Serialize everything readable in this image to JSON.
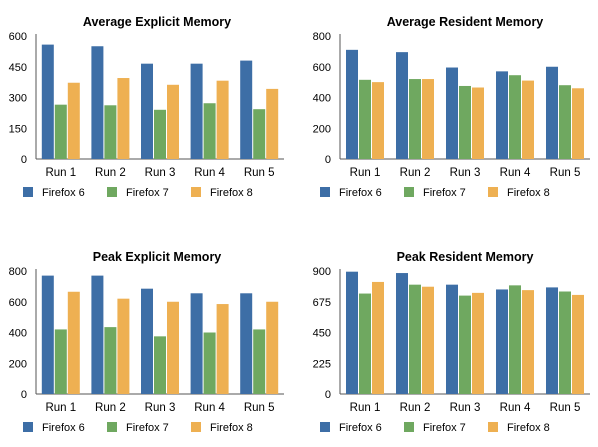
{
  "colors": {
    "firefox6": "#3d6ea6",
    "firefox7": "#6fa860",
    "firefox8": "#eeb052",
    "axis": "#555555",
    "text": "#000000"
  },
  "legend": [
    "Firefox 6",
    "Firefox 7",
    "Firefox 8"
  ],
  "chart_data": [
    {
      "type": "bar",
      "title": "Average Explicit Memory",
      "categories": [
        "Run 1",
        "Run 2",
        "Run 3",
        "Run 4",
        "Run 5"
      ],
      "series": [
        {
          "name": "Firefox 6",
          "values": [
            558,
            550,
            465,
            465,
            480
          ]
        },
        {
          "name": "Firefox 7",
          "values": [
            265,
            262,
            240,
            272,
            243
          ]
        },
        {
          "name": "Firefox 8",
          "values": [
            372,
            395,
            362,
            382,
            342
          ]
        }
      ],
      "ylim": [
        0,
        600
      ],
      "yticks": [
        0,
        150,
        300,
        450,
        600
      ],
      "grid": false,
      "legend_position": "bottom"
    },
    {
      "type": "bar",
      "title": "Average Resident Memory",
      "categories": [
        "Run 1",
        "Run 2",
        "Run 3",
        "Run 4",
        "Run 5"
      ],
      "series": [
        {
          "name": "Firefox 6",
          "values": [
            710,
            695,
            595,
            570,
            600
          ]
        },
        {
          "name": "Firefox 7",
          "values": [
            515,
            520,
            475,
            545,
            480
          ]
        },
        {
          "name": "Firefox 8",
          "values": [
            500,
            520,
            465,
            510,
            460
          ]
        }
      ],
      "ylim": [
        0,
        800
      ],
      "yticks": [
        0,
        200,
        400,
        600,
        800
      ],
      "grid": false,
      "legend_position": "bottom"
    },
    {
      "type": "bar",
      "title": "Peak Explicit Memory",
      "categories": [
        "Run 1",
        "Run 2",
        "Run 3",
        "Run 4",
        "Run 5"
      ],
      "series": [
        {
          "name": "Firefox 6",
          "values": [
            770,
            770,
            685,
            655,
            655
          ]
        },
        {
          "name": "Firefox 7",
          "values": [
            420,
            435,
            375,
            400,
            420
          ]
        },
        {
          "name": "Firefox 8",
          "values": [
            665,
            620,
            600,
            585,
            600
          ]
        }
      ],
      "ylim": [
        0,
        800
      ],
      "yticks": [
        0,
        200,
        400,
        600,
        800
      ],
      "grid": false,
      "legend_position": "bottom"
    },
    {
      "type": "bar",
      "title": "Peak Resident Memory",
      "categories": [
        "Run 1",
        "Run 2",
        "Run 3",
        "Run 4",
        "Run 5"
      ],
      "series": [
        {
          "name": "Firefox 6",
          "values": [
            895,
            885,
            800,
            765,
            780
          ]
        },
        {
          "name": "Firefox 7",
          "values": [
            735,
            800,
            720,
            795,
            750
          ]
        },
        {
          "name": "Firefox 8",
          "values": [
            820,
            785,
            740,
            760,
            725
          ]
        }
      ],
      "ylim": [
        0,
        900
      ],
      "yticks": [
        0,
        225,
        450,
        675,
        900
      ],
      "grid": false,
      "legend_position": "bottom"
    }
  ]
}
